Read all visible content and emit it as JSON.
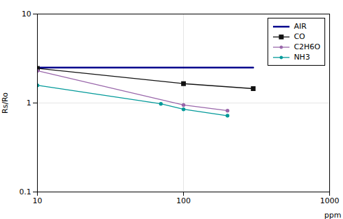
{
  "chart_data": {
    "type": "line",
    "xlabel": "ppm",
    "ylabel": "Rs/Ro",
    "log": true,
    "xlim": [
      10,
      1000
    ],
    "ylim": [
      0.1,
      10
    ],
    "xticks": [
      10,
      100,
      1000
    ],
    "yticks": [
      0.1,
      1,
      10
    ],
    "grid": true,
    "legend": "upper right",
    "series": [
      {
        "name": "AIR",
        "color": "#00008B",
        "line_style": "solid",
        "x": [
          10,
          300
        ],
        "values": [
          2.5,
          2.5
        ]
      },
      {
        "name": "CO",
        "color": "#111111",
        "line_style": "solid",
        "marker": "square",
        "x": [
          10,
          100,
          300
        ],
        "values": [
          2.45,
          1.65,
          1.45
        ]
      },
      {
        "name": "C2H6O",
        "color": "#9966aa",
        "line_style": "solid",
        "marker": "point",
        "x": [
          10,
          100,
          200
        ],
        "values": [
          2.3,
          0.95,
          0.82
        ]
      },
      {
        "name": "NH3",
        "color": "#009999",
        "line_style": "solid",
        "marker": "point",
        "x": [
          10,
          70,
          100,
          200
        ],
        "values": [
          1.58,
          0.98,
          0.85,
          0.72
        ]
      }
    ]
  }
}
